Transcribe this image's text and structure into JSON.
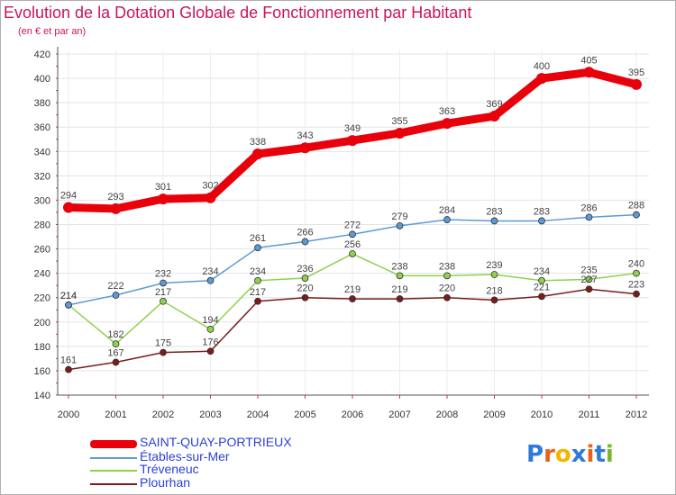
{
  "title": "Evolution de la Dotation Globale de Fonctionnement par Habitant",
  "subtitle": "(en € et par an)",
  "logo": {
    "letters": [
      "P",
      "r",
      "o",
      "x",
      "i",
      "t",
      "i"
    ],
    "colors": [
      "#2f7ad8",
      "#e9611c",
      "#f4b400",
      "#2f7ad8",
      "#e9611c",
      "#2f7ad8",
      "#77b82a"
    ]
  },
  "chart_data": {
    "type": "line",
    "title": "Evolution de la Dotation Globale de Fonctionnement par Habitant",
    "ylabel": "(en € et par an)",
    "xlabel": "",
    "ylim": [
      140,
      420
    ],
    "yticks": [
      140,
      160,
      180,
      200,
      220,
      240,
      260,
      280,
      300,
      320,
      340,
      360,
      380,
      400,
      420
    ],
    "categories": [
      "2000",
      "2001",
      "2002",
      "2003",
      "2004",
      "2005",
      "2006",
      "2007",
      "2008",
      "2009",
      "2010",
      "2011",
      "2012"
    ],
    "series": [
      {
        "name": "SAINT-QUAY-PORTRIEUX",
        "color": "#e8000b",
        "values": [
          294,
          293,
          301,
          302,
          338,
          343,
          349,
          355,
          363,
          369,
          400,
          405,
          395
        ]
      },
      {
        "name": "Étables-sur-Mer",
        "color": "#5b9bd5",
        "values": [
          214,
          222,
          232,
          234,
          261,
          266,
          272,
          279,
          284,
          283,
          283,
          286,
          288
        ]
      },
      {
        "name": "Tréveneuc",
        "color": "#8fd14f",
        "values": [
          214,
          182,
          217,
          194,
          234,
          236,
          256,
          238,
          238,
          239,
          234,
          235,
          240
        ]
      },
      {
        "name": "Plourhan",
        "color": "#7a1c1c",
        "values": [
          161,
          167,
          175,
          176,
          217,
          220,
          219,
          219,
          220,
          218,
          221,
          227,
          223
        ]
      }
    ]
  }
}
